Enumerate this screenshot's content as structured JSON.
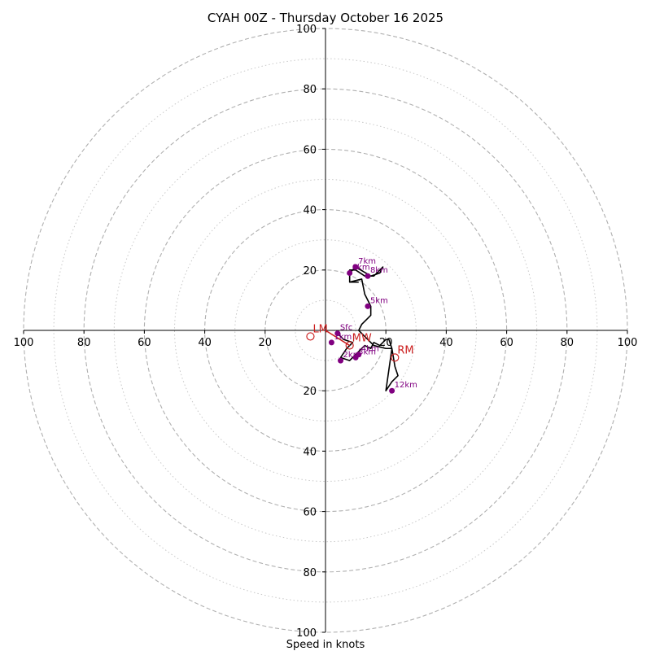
{
  "chart_data": {
    "type": "hodograph",
    "title": "CYAH 00Z - Thursday October 16 2025",
    "xlabel": "Speed in knots",
    "axis_range": [
      -100,
      100
    ],
    "tick_labels": [
      "100",
      "80",
      "60",
      "40",
      "20",
      "20",
      "40",
      "60",
      "80",
      "100"
    ],
    "tick_values": [
      -100,
      -80,
      -60,
      -40,
      -20,
      20,
      40,
      60,
      80,
      100
    ],
    "rings_dashed": [
      20,
      40,
      60,
      80,
      100
    ],
    "rings_dotted": [
      10,
      30,
      50,
      70,
      90
    ],
    "hodograph_trace": {
      "u": [
        4,
        6,
        9,
        7,
        5,
        8,
        11,
        13,
        15,
        16,
        18,
        20,
        21,
        22,
        23,
        24,
        22,
        20,
        22,
        20,
        16,
        13,
        11,
        12,
        14,
        15,
        15,
        14,
        13,
        12,
        8,
        8,
        9,
        10,
        15,
        18,
        19,
        17,
        16,
        13,
        10,
        8,
        8,
        11
      ],
      "v": [
        1,
        3,
        4,
        6,
        9,
        10,
        7,
        5,
        6,
        4,
        5,
        3,
        3,
        6,
        12,
        15,
        17,
        20,
        6,
        6,
        5,
        2,
        0,
        -2,
        -4,
        -5,
        -8,
        -10,
        -12,
        -17,
        -16,
        -19,
        -20,
        -21,
        -18,
        -19,
        -21,
        -19,
        -18,
        -18,
        -20,
        -20,
        -16,
        -16
      ]
    },
    "points": [
      {
        "label": "Sfc",
        "u": 4,
        "v": 1
      },
      {
        "label": "1km",
        "u": 2,
        "v": 4
      },
      {
        "label": "2km",
        "u": 5,
        "v": 10
      },
      {
        "label": "3km",
        "u": 10,
        "v": 9
      },
      {
        "label": "4km",
        "u": 11,
        "v": 8
      },
      {
        "label": "5km",
        "u": 14,
        "v": -8
      },
      {
        "label": "6km",
        "u": 8,
        "v": -19
      },
      {
        "label": "7km",
        "u": 10,
        "v": -21
      },
      {
        "label": "8km",
        "u": 14,
        "v": -18
      },
      {
        "label": "12km",
        "u": 22,
        "v": 20
      }
    ],
    "motions": [
      {
        "label": "LM",
        "u": -5,
        "v": 2
      },
      {
        "label": "MW",
        "u": 8,
        "v": 5
      },
      {
        "label": "RM",
        "u": 23,
        "v": 9
      }
    ],
    "shear_vector": {
      "u": 8,
      "v": 5
    },
    "colors": {
      "trace": "#000000",
      "points": "#800080",
      "motions": "#cc2020",
      "grid": "#b0b0b0"
    }
  }
}
